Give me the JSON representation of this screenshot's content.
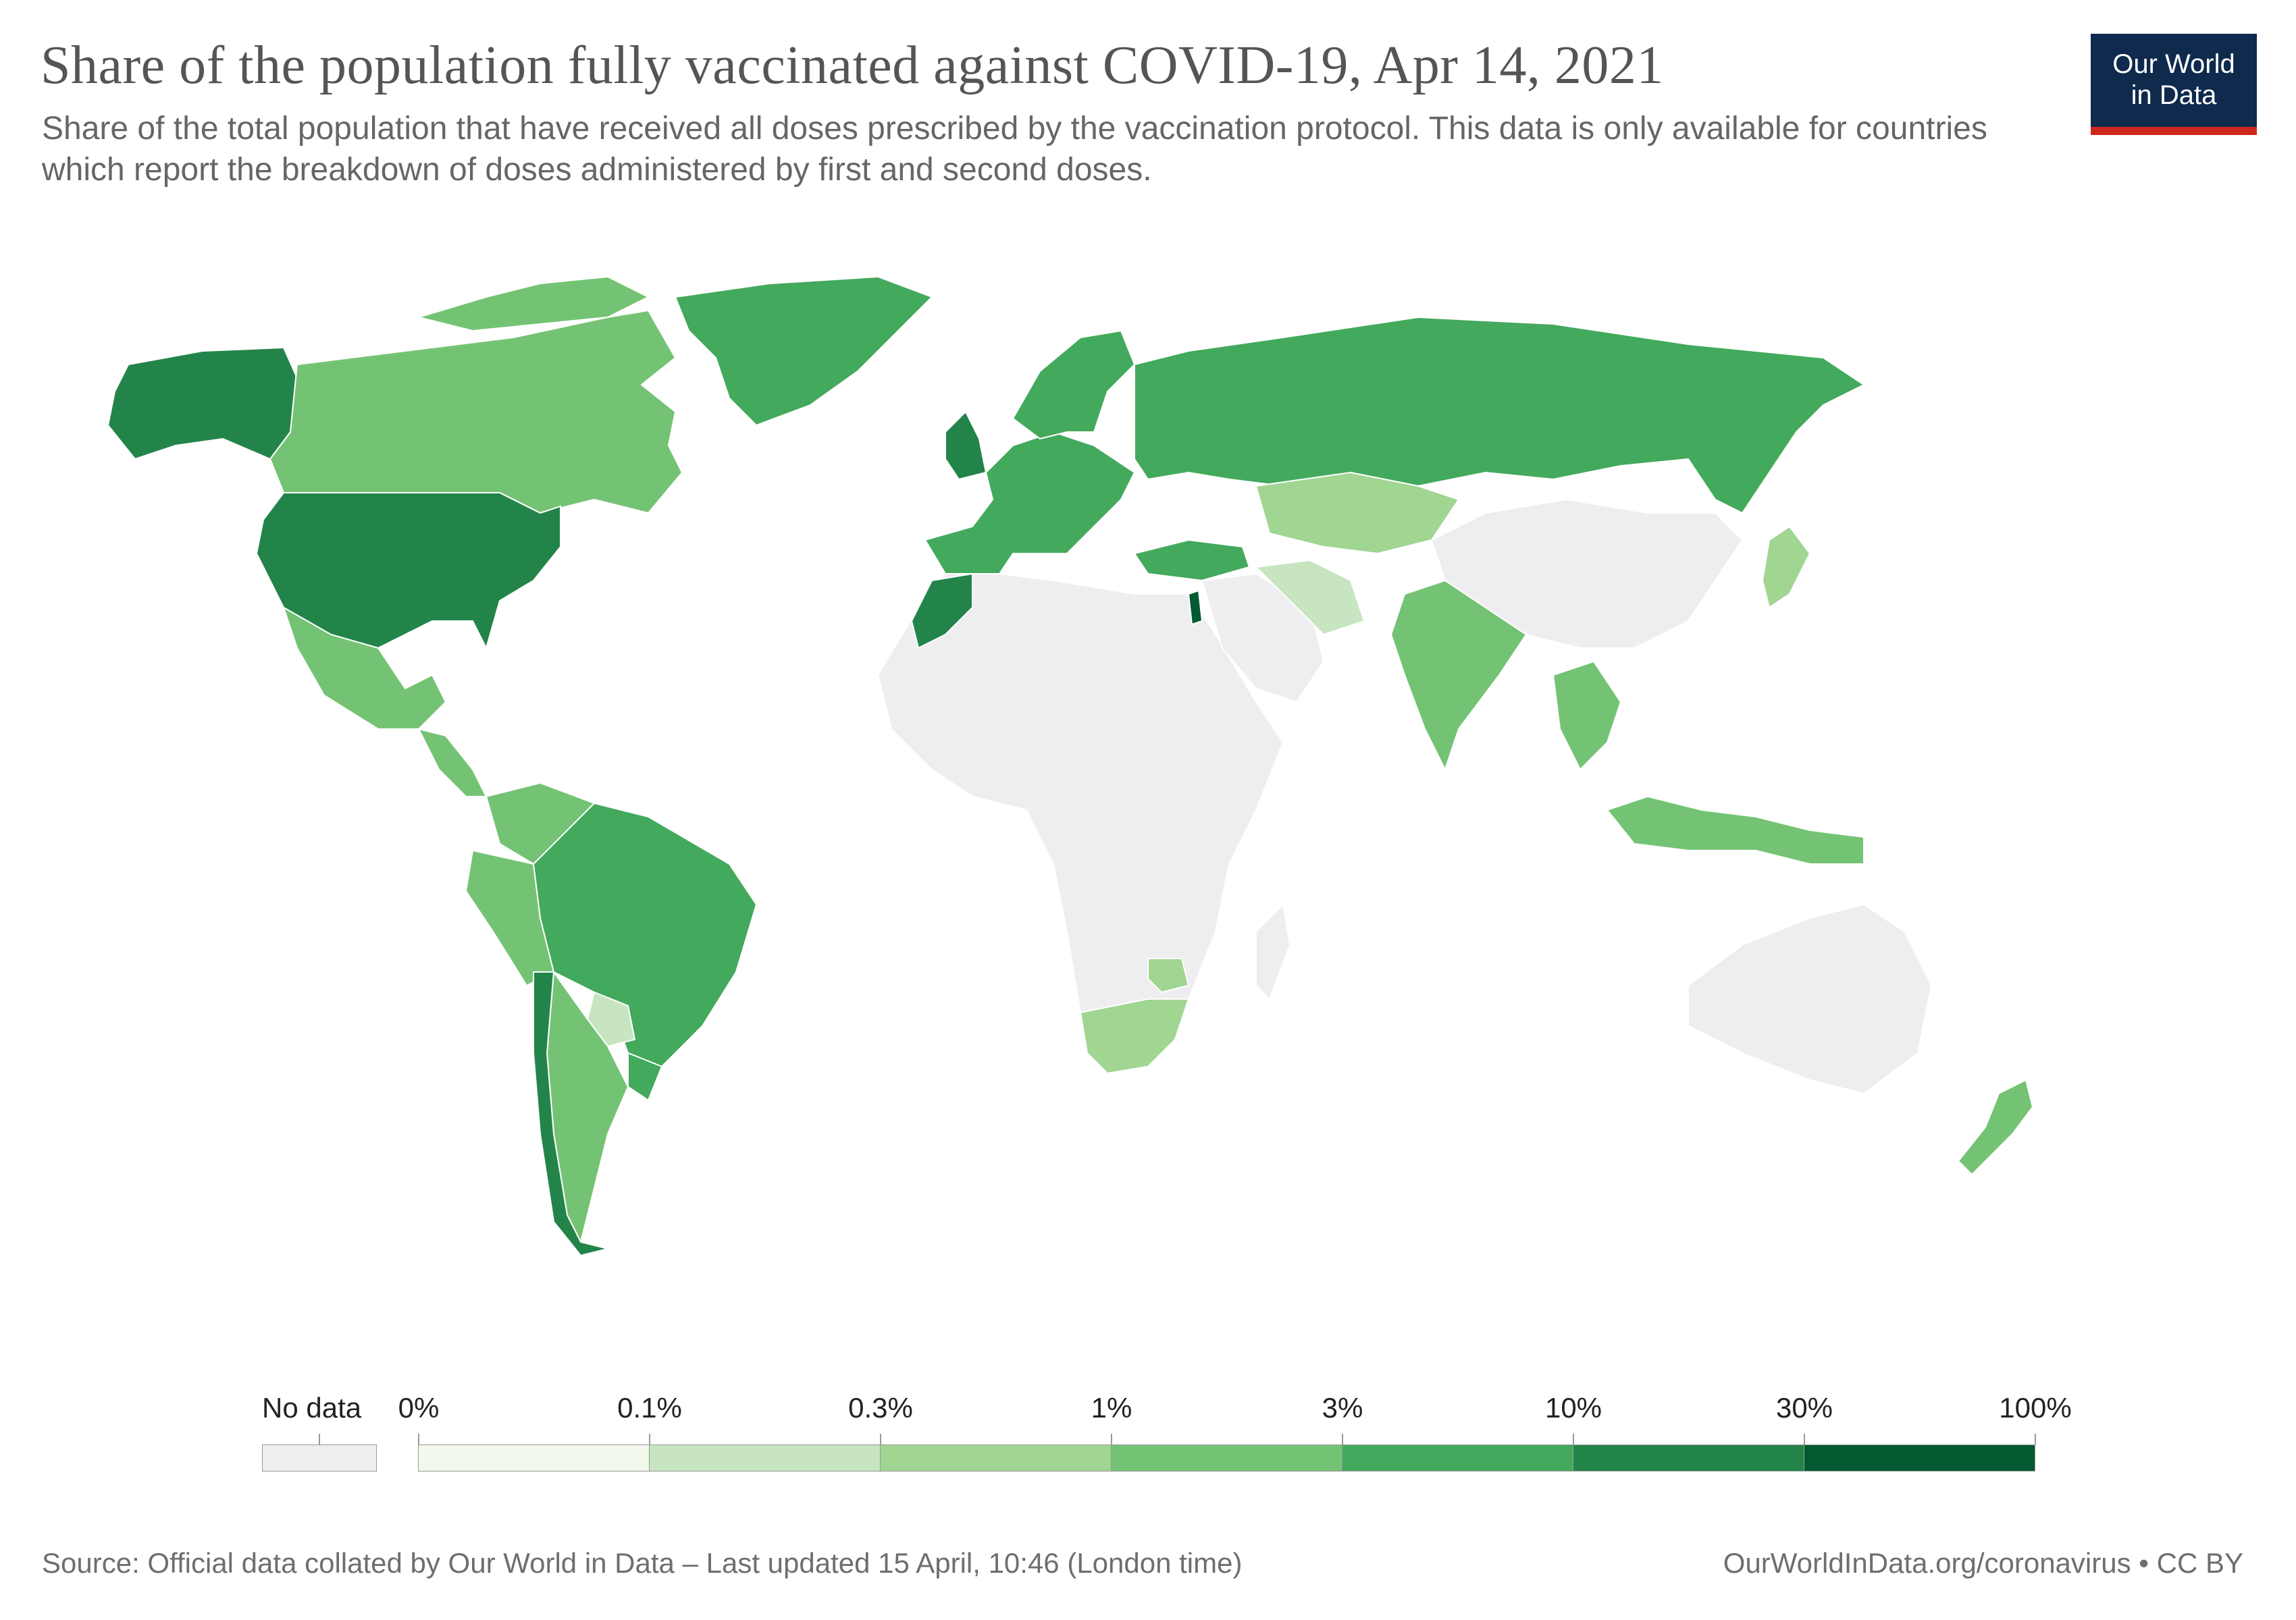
{
  "header": {
    "title": "Share of the population fully vaccinated against COVID-19, Apr 14, 2021",
    "subtitle": "Share of the total population that have received all doses prescribed by the vaccination protocol. This data is only available for countries which report the breakdown of doses administered by first and second doses.",
    "logo_line1": "Our World",
    "logo_line2": "in Data",
    "logo_bg": "#0f2a4d",
    "logo_accent": "#ce261e"
  },
  "legend": {
    "no_data_label": "No data",
    "no_data_color": "#eeedf0",
    "ticks": [
      "0%",
      "0.1%",
      "0.3%",
      "1%",
      "3%",
      "10%",
      "30%",
      "100%"
    ],
    "colors": [
      "#f1f8ec",
      "#c6e5c0",
      "#a0d592",
      "#74c374",
      "#43a95c",
      "#23844a",
      "#035a30"
    ]
  },
  "footer": {
    "source": "Source: Official data collated by Our World in Data – Last updated 15 April, 10:46 (London time)",
    "license": "OurWorldInData.org/coronavirus • CC BY"
  },
  "map": {
    "regions": [
      {
        "name": "Canada",
        "bin": 3
      },
      {
        "name": "United States",
        "bin": 5
      },
      {
        "name": "Alaska (US)",
        "bin": 5
      },
      {
        "name": "Greenland",
        "bin": 4
      },
      {
        "name": "Mexico",
        "bin": 3
      },
      {
        "name": "Brazil",
        "bin": 4
      },
      {
        "name": "Chile",
        "bin": 5
      },
      {
        "name": "Argentina",
        "bin": 3
      },
      {
        "name": "Peru",
        "bin": 3
      },
      {
        "name": "Colombia",
        "bin": 3
      },
      {
        "name": "Uruguay",
        "bin": 4
      },
      {
        "name": "Paraguay",
        "bin": 1
      },
      {
        "name": "Russia",
        "bin": 4
      },
      {
        "name": "Kazakhstan",
        "bin": 2
      },
      {
        "name": "Western Europe",
        "bin": 4
      },
      {
        "name": "United Kingdom",
        "bin": 5
      },
      {
        "name": "Scandinavia",
        "bin": 4
      },
      {
        "name": "Turkey",
        "bin": 4
      },
      {
        "name": "Morocco",
        "bin": 5
      },
      {
        "name": "Israel",
        "bin": 6
      },
      {
        "name": "Iran",
        "bin": 1
      },
      {
        "name": "India",
        "bin": 3
      },
      {
        "name": "Indonesia",
        "bin": 3
      },
      {
        "name": "Japan",
        "bin": 2
      },
      {
        "name": "South Africa",
        "bin": 2
      },
      {
        "name": "Zimbabwe",
        "bin": 2
      },
      {
        "name": "Australia",
        "bin": -1
      },
      {
        "name": "New Zealand",
        "bin": 3
      },
      {
        "name": "China",
        "bin": -1
      },
      {
        "name": "Africa",
        "bin": -1
      },
      {
        "name": "Saudi Arabia",
        "bin": -1
      }
    ]
  }
}
